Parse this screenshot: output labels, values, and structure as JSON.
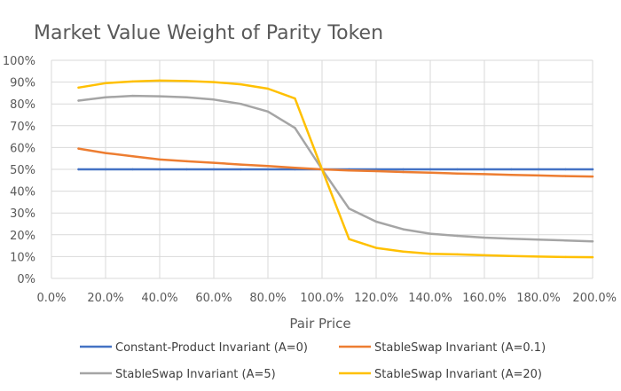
{
  "chart_data": {
    "type": "line",
    "title": "Market Value Weight of Parity Token",
    "xlabel": "Pair Price",
    "ylabel": "",
    "xlim": [
      0,
      200
    ],
    "ylim": [
      0,
      100
    ],
    "x_ticks": [
      "0.0%",
      "20.0%",
      "40.0%",
      "60.0%",
      "80.0%",
      "100.0%",
      "120.0%",
      "140.0%",
      "160.0%",
      "180.0%",
      "200.0%"
    ],
    "y_ticks": [
      "0%",
      "10%",
      "20%",
      "30%",
      "40%",
      "50%",
      "60%",
      "70%",
      "80%",
      "90%",
      "100%"
    ],
    "grid": true,
    "legend_position": "bottom",
    "x": [
      10,
      20,
      30,
      40,
      50,
      60,
      70,
      80,
      90,
      100,
      110,
      120,
      130,
      140,
      150,
      160,
      170,
      180,
      190,
      200
    ],
    "series": [
      {
        "name": "Constant-Product Invariant (A=0)",
        "color": "#4472C4",
        "values": [
          50,
          50,
          50,
          50,
          50,
          50,
          50,
          50,
          50,
          50,
          50,
          50,
          50,
          50,
          50,
          50,
          50,
          50,
          50,
          50
        ]
      },
      {
        "name": "StableSwap Invariant (A=0.1)",
        "color": "#ED7D31",
        "values": [
          59.5,
          57.5,
          56,
          54.5,
          53.7,
          53,
          52.2,
          51.5,
          50.7,
          50,
          49.5,
          49.2,
          48.8,
          48.5,
          48.1,
          47.8,
          47.5,
          47.2,
          46.9,
          46.7
        ]
      },
      {
        "name": "StableSwap Invariant (A=5)",
        "color": "#A5A5A5",
        "values": [
          81.5,
          83,
          83.7,
          83.5,
          83,
          82,
          80,
          76.5,
          69,
          50,
          32,
          26,
          22.5,
          20.5,
          19.5,
          18.7,
          18.2,
          17.8,
          17.4,
          17
        ]
      },
      {
        "name": "StableSwap Invariant (A=20)",
        "color": "#FFC000",
        "values": [
          87.5,
          89.5,
          90.3,
          90.7,
          90.5,
          90,
          89,
          87,
          82.5,
          50,
          18,
          14,
          12.3,
          11.3,
          11,
          10.6,
          10.3,
          10,
          9.8,
          9.7
        ]
      }
    ]
  }
}
